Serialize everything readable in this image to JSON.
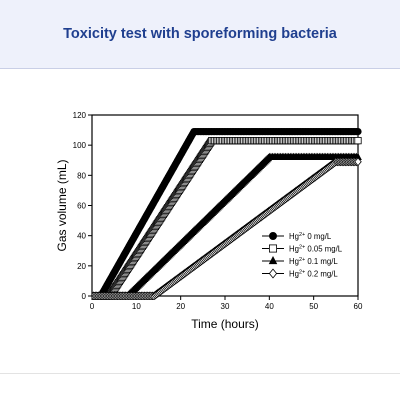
{
  "header": {
    "title": "Toxicity test with sporeforming bacteria"
  },
  "colors": {
    "header_bg": "#eef1fb",
    "header_text": "#1f3f8f",
    "series_filled": "#000000",
    "series_open": "#ffffff"
  },
  "chart_data": {
    "type": "line",
    "xlabel": "Time (hours)",
    "ylabel": "Gas volume (mL)",
    "xlim": [
      0,
      60
    ],
    "ylim": [
      0,
      120
    ],
    "xticks": [
      0,
      10,
      20,
      30,
      40,
      50,
      60
    ],
    "yticks": [
      0,
      20,
      40,
      60,
      80,
      100,
      120
    ],
    "grid": false,
    "legend_position": "bottom-right",
    "series": [
      {
        "name": "Hg2+ 0 mg/L",
        "ion": "Hg",
        "charge": "2+",
        "conc": " 0 mg/L",
        "marker": "circle",
        "filled": true,
        "x": [
          0,
          2,
          23,
          60
        ],
        "y": [
          0,
          0,
          109,
          109
        ]
      },
      {
        "name": "Hg2+ 0.05 mg/L",
        "ion": "Hg",
        "charge": "2+",
        "conc": " 0.05 mg/L",
        "marker": "square",
        "filled": false,
        "x": [
          0,
          4,
          27,
          60
        ],
        "y": [
          0,
          0,
          103,
          103
        ]
      },
      {
        "name": "Hg2+ 0.1 mg/L",
        "ion": "Hg",
        "charge": "2+",
        "conc": " 0.1 mg/L",
        "marker": "triangle",
        "filled": true,
        "x": [
          0,
          8,
          40,
          60
        ],
        "y": [
          0,
          0,
          92,
          92
        ]
      },
      {
        "name": "Hg2+ 0.2 mg/L",
        "ion": "Hg",
        "charge": "2+",
        "conc": " 0.2 mg/L",
        "marker": "diamond",
        "filled": false,
        "x": [
          0,
          14,
          55,
          60
        ],
        "y": [
          0,
          0,
          89,
          89
        ]
      }
    ]
  }
}
